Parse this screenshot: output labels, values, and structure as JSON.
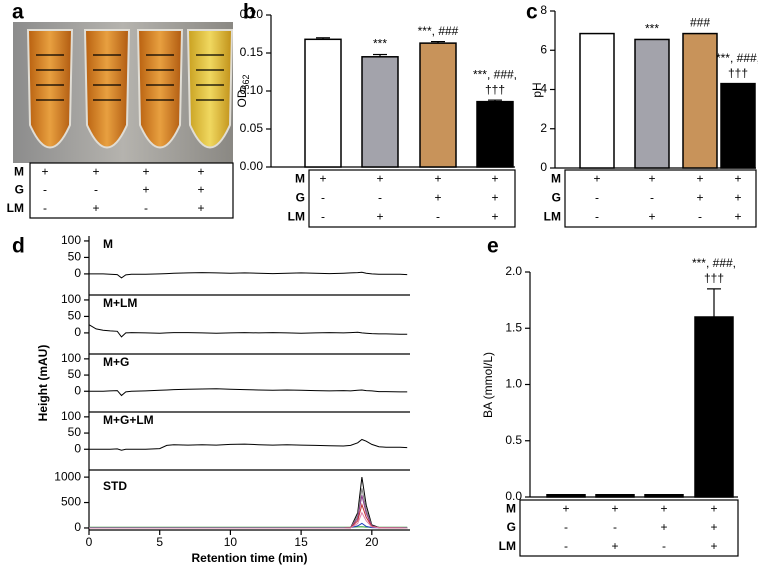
{
  "conditions": {
    "rows": [
      {
        "label": "M",
        "signs": [
          "+",
          "+",
          "+",
          "+"
        ]
      },
      {
        "label": "G",
        "signs": [
          "-",
          "-",
          "+",
          "+"
        ]
      },
      {
        "label": "LM",
        "signs": [
          "-",
          "+",
          "-",
          "+"
        ]
      }
    ]
  },
  "chart_data": [
    {
      "type": "photo",
      "panel": "a"
    },
    {
      "type": "bar",
      "panel": "b",
      "ylabel": "OD",
      "ylabel_subscript": "562",
      "values": [
        0.168,
        0.145,
        0.163,
        0.086
      ],
      "errors": [
        0.002,
        0.003,
        0.002,
        0.002
      ],
      "colors": [
        "#ffffff",
        "#a3a3ab",
        "#c8935a",
        "#000000"
      ],
      "annotations": [
        null,
        [
          "***"
        ],
        [
          "***, ###"
        ],
        [
          "***, ###,",
          "†††"
        ]
      ],
      "ylim": [
        0,
        0.2
      ],
      "yticks": [
        {
          "value": 0,
          "label": "0.00"
        },
        {
          "value": 0.05,
          "label": "0.05"
        },
        {
          "value": 0.1,
          "label": "0.10"
        },
        {
          "value": 0.15,
          "label": "0.15"
        },
        {
          "value": 0.2,
          "label": "0.20"
        }
      ]
    },
    {
      "type": "bar",
      "panel": "c",
      "ylabel": "pH",
      "values": [
        6.85,
        6.55,
        6.85,
        4.3
      ],
      "colors": [
        "#ffffff",
        "#a3a3ab",
        "#c8935a",
        "#000000"
      ],
      "annotations": [
        null,
        [
          "***"
        ],
        [
          "###"
        ],
        [
          "***, ###,",
          "†††"
        ]
      ],
      "ylim": [
        0,
        8
      ],
      "yticks": [
        0,
        2,
        4,
        6,
        8
      ]
    },
    {
      "type": "line",
      "panel": "d",
      "xlabel": "Retention time (min)",
      "ylabel": "Height (mAU)",
      "xlim": [
        0,
        22.7
      ],
      "xticks": [
        0,
        5,
        10,
        15,
        20
      ],
      "x": [
        0,
        0.5,
        1,
        1.5,
        2,
        2.3,
        2.6,
        3,
        4,
        5,
        5.5,
        6,
        7,
        8,
        9,
        10,
        11,
        12,
        13,
        14,
        15,
        16,
        17,
        18,
        18.5,
        19,
        19.3,
        19.6,
        20,
        20.5,
        21,
        22,
        22.5
      ],
      "subplots": [
        {
          "label": "M",
          "ylim": [
            -64,
            115
          ],
          "yticks": [
            0,
            50,
            100
          ],
          "series": [
            {
              "color": "#000000",
              "values": [
                0,
                0,
                0,
                -1,
                -2,
                -12,
                -3,
                -1,
                -1,
                0,
                1,
                2,
                3,
                4,
                3,
                2,
                3,
                2,
                1,
                2,
                3,
                2,
                1,
                2,
                3,
                4,
                5,
                2,
                0,
                -1,
                -1,
                -1,
                -2
              ]
            }
          ]
        },
        {
          "label": "M+LM",
          "ylim": [
            -64,
            115
          ],
          "yticks": [
            0,
            50,
            100
          ],
          "series": [
            {
              "color": "#000000",
              "values": [
                25,
                12,
                8,
                6,
                5,
                -12,
                0,
                1,
                0,
                -1,
                0,
                1,
                1,
                0,
                -1,
                0,
                1,
                0,
                1,
                0,
                -1,
                0,
                1,
                0,
                1,
                2,
                0,
                -1,
                -2,
                -3,
                -3,
                -4,
                -4
              ]
            }
          ]
        },
        {
          "label": "M+G",
          "ylim": [
            -64,
            115
          ],
          "yticks": [
            0,
            50,
            100
          ],
          "series": [
            {
              "color": "#000000",
              "values": [
                0,
                0,
                0,
                1,
                2,
                -13,
                -2,
                0,
                1,
                3,
                4,
                5,
                6,
                7,
                8,
                6,
                5,
                4,
                3,
                4,
                3,
                2,
                1,
                2,
                1,
                3,
                4,
                2,
                1,
                -1,
                -1,
                -2,
                -2
              ]
            }
          ]
        },
        {
          "label": "M+G+LM",
          "ylim": [
            -64,
            115
          ],
          "yticks": [
            0,
            50,
            100
          ],
          "series": [
            {
              "color": "#000000",
              "values": [
                0,
                0,
                0,
                0,
                1,
                -3,
                0,
                0,
                0,
                2,
                12,
                14,
                13,
                14,
                13,
                15,
                16,
                14,
                13,
                14,
                13,
                12,
                11,
                10,
                12,
                20,
                30,
                25,
                15,
                8,
                6,
                6,
                5
              ]
            }
          ]
        },
        {
          "label": "STD",
          "ylim": [
            -40,
            1140
          ],
          "yticks": [
            0,
            500,
            1000
          ],
          "series": [
            {
              "color": "#30a030",
              "values": [
                15,
                14,
                16,
                15,
                13,
                15,
                16,
                14,
                15,
                16,
                15,
                14,
                16,
                15,
                14,
                15,
                16,
                15,
                14,
                15,
                16,
                15,
                14,
                15,
                16,
                20,
                25,
                18,
                15,
                14,
                15,
                16,
                15
              ]
            },
            {
              "color": "#2040c0",
              "values": [
                5,
                6,
                5,
                4,
                6,
                5,
                5,
                6,
                5,
                4,
                5,
                6,
                5,
                5,
                4,
                6,
                5,
                5,
                6,
                5,
                4,
                5,
                6,
                5,
                8,
                40,
                90,
                30,
                8,
                5,
                6,
                5,
                5
              ]
            },
            {
              "color": "#000000",
              "values": [
                0,
                0,
                0,
                0,
                0,
                0,
                0,
                0,
                0,
                0,
                0,
                0,
                0,
                0,
                0,
                0,
                0,
                0,
                0,
                0,
                0,
                0,
                0,
                0,
                5,
                300,
                1000,
                450,
                60,
                10,
                5,
                2,
                0
              ]
            },
            {
              "color": "#808080",
              "values": [
                0,
                0,
                0,
                0,
                0,
                0,
                0,
                0,
                0,
                0,
                0,
                0,
                0,
                0,
                0,
                0,
                0,
                0,
                0,
                0,
                0,
                0,
                0,
                0,
                5,
                240,
                780,
                350,
                45,
                8,
                4,
                2,
                0
              ]
            },
            {
              "color": "#8b3a8b",
              "values": [
                0,
                0,
                0,
                0,
                0,
                0,
                0,
                0,
                0,
                0,
                0,
                0,
                0,
                0,
                0,
                0,
                0,
                0,
                0,
                0,
                0,
                0,
                0,
                0,
                4,
                190,
                640,
                290,
                40,
                6,
                3,
                1,
                0
              ]
            },
            {
              "color": "#c03030",
              "values": [
                0,
                0,
                0,
                0,
                0,
                0,
                0,
                0,
                0,
                0,
                0,
                0,
                0,
                0,
                0,
                0,
                0,
                0,
                0,
                0,
                0,
                0,
                0,
                0,
                3,
                140,
                460,
                210,
                30,
                5,
                2,
                1,
                0
              ]
            },
            {
              "color": "#e080a8",
              "values": [
                0,
                0,
                0,
                0,
                0,
                0,
                0,
                0,
                0,
                0,
                0,
                0,
                0,
                0,
                0,
                0,
                0,
                0,
                0,
                0,
                0,
                0,
                0,
                0,
                2,
                90,
                300,
                140,
                20,
                3,
                2,
                1,
                0
              ]
            }
          ]
        }
      ]
    },
    {
      "type": "bar",
      "panel": "e",
      "ylabel": "BA (mmol/L)",
      "values": [
        0.02,
        0.02,
        0.02,
        1.6
      ],
      "errors": [
        null,
        null,
        null,
        0.25
      ],
      "colors": [
        "#000000",
        "#000000",
        "#000000",
        "#000000"
      ],
      "annotations": [
        null,
        null,
        null,
        [
          "***, ###,",
          "†††"
        ]
      ],
      "ylim": [
        0,
        2
      ],
      "yticks": [
        {
          "value": 0,
          "label": "0.0"
        },
        {
          "value": 0.5,
          "label": "0.5"
        },
        {
          "value": 1,
          "label": "1.0"
        },
        {
          "value": 1.5,
          "label": "1.5"
        },
        {
          "value": 2,
          "label": "2.0"
        }
      ]
    }
  ]
}
